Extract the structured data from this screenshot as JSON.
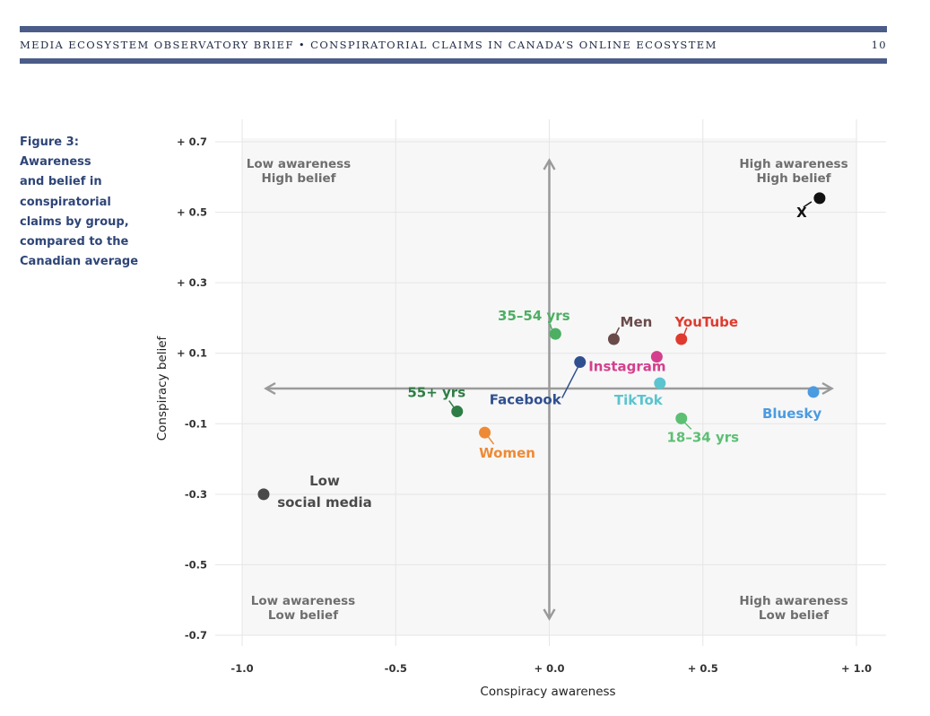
{
  "header": {
    "title": "Media Ecosystem Observatory Brief • Conspiratorial Claims in Canada’s Online Ecosystem",
    "page_number": "10"
  },
  "figure": {
    "caption_lines": [
      "Figure 3:",
      "Awareness",
      "and belief in",
      "conspiratorial",
      "claims by group,",
      "compared to the",
      "Canadian average"
    ]
  },
  "colors": {
    "rule": "#4b5c89",
    "caption": "#2e4577",
    "quadrant_bg": "#f7f7f7",
    "axis_arrow": "#9a9a9a",
    "quadrant_label": "#6e6e6e"
  },
  "chart_data": {
    "type": "scatter",
    "xlabel": "Conspiracy awareness",
    "ylabel": "Conspiracy belief",
    "xlim": [
      -1.0,
      1.0
    ],
    "ylim": [
      -0.7,
      0.7
    ],
    "x_ticks": [
      -1.0,
      -0.5,
      0.0,
      0.5,
      1.0
    ],
    "x_tick_labels": [
      "-1.0",
      "-0.5",
      "+ 0.0",
      "+ 0.5",
      "+ 1.0"
    ],
    "y_ticks": [
      0.7,
      0.5,
      0.3,
      0.1,
      -0.1,
      -0.3,
      -0.5,
      -0.7
    ],
    "y_tick_labels": [
      "+ 0.7",
      "+ 0.5",
      "+ 0.3",
      "+ 0.1",
      "-0.1",
      "-0.3",
      "-0.5",
      "-0.7"
    ],
    "grid": true,
    "quadrant_labels": [
      {
        "lines": [
          "Low awareness",
          "High belief"
        ],
        "position": "top-left"
      },
      {
        "lines": [
          "High awareness",
          "High belief"
        ],
        "position": "top-right"
      },
      {
        "lines": [
          "Low awareness",
          "Low belief"
        ],
        "position": "bottom-left"
      },
      {
        "lines": [
          "High awareness",
          "Low belief"
        ],
        "position": "bottom-right"
      }
    ],
    "points": [
      {
        "label": "X",
        "x": 0.88,
        "y": 0.54,
        "color": "#111111"
      },
      {
        "label": "35–54 yrs",
        "x": 0.02,
        "y": 0.155,
        "color": "#4caf63"
      },
      {
        "label": "Men",
        "x": 0.21,
        "y": 0.14,
        "color": "#6b4a4a"
      },
      {
        "label": "YouTube",
        "x": 0.43,
        "y": 0.14,
        "color": "#e03a2f"
      },
      {
        "label": "Instagram",
        "x": 0.35,
        "y": 0.09,
        "color": "#d43f8d"
      },
      {
        "label": "Facebook",
        "x": 0.1,
        "y": 0.075,
        "color": "#2f4f8f"
      },
      {
        "label": "TikTok",
        "x": 0.36,
        "y": 0.015,
        "color": "#5bc4cf"
      },
      {
        "label": "Bluesky",
        "x": 0.86,
        "y": -0.01,
        "color": "#4b9be0"
      },
      {
        "label": "55+ yrs",
        "x": -0.3,
        "y": -0.065,
        "color": "#2e7d45"
      },
      {
        "label": "18–34 yrs",
        "x": 0.43,
        "y": -0.085,
        "color": "#5cbf73"
      },
      {
        "label": "Women",
        "x": -0.21,
        "y": -0.125,
        "color": "#ee8a35"
      },
      {
        "label_lines": [
          "Low",
          "social media"
        ],
        "x": -0.93,
        "y": -0.3,
        "color": "#4a4a4a"
      }
    ]
  }
}
